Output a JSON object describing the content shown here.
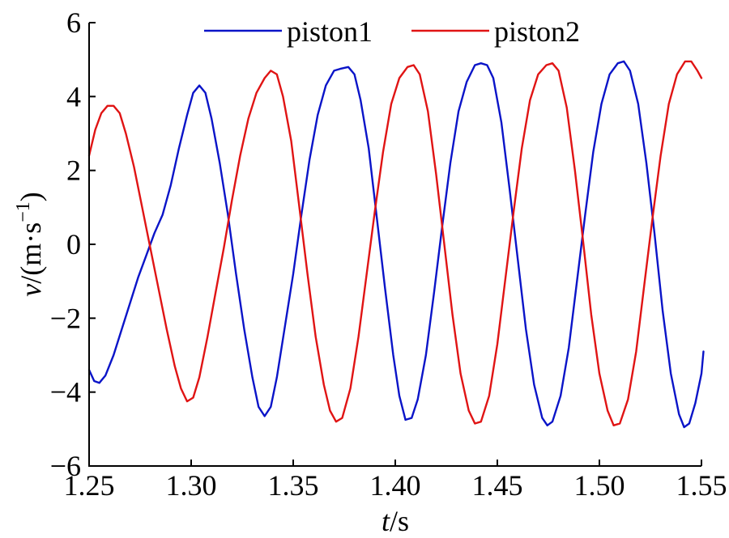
{
  "chart_data": {
    "type": "line",
    "xlabel_var": "t",
    "xlabel_unit": "/s",
    "ylabel_var": "v",
    "ylabel_unit": "/(m·s",
    "ylabel_exp": "−1",
    "ylabel_close": ")",
    "xlim": [
      1.25,
      1.55
    ],
    "ylim": [
      -6,
      6
    ],
    "xticks": [
      1.25,
      1.3,
      1.35,
      1.4,
      1.45,
      1.5,
      1.55
    ],
    "xtick_labels": [
      "1.25",
      "1.30",
      "1.35",
      "1.40",
      "1.45",
      "1.50",
      "1.55"
    ],
    "yticks": [
      -6,
      -4,
      -2,
      0,
      2,
      4,
      6
    ],
    "ytick_labels": [
      "−6",
      "−4",
      "−2",
      "0",
      "2",
      "4",
      "6"
    ],
    "legend_position": "top",
    "series": [
      {
        "name": "piston1",
        "color": "#0a14c8",
        "points": [
          [
            1.25,
            -3.4
          ],
          [
            1.2525,
            -3.7
          ],
          [
            1.255,
            -3.75
          ],
          [
            1.258,
            -3.55
          ],
          [
            1.262,
            -3.0
          ],
          [
            1.266,
            -2.3
          ],
          [
            1.27,
            -1.6
          ],
          [
            1.274,
            -0.9
          ],
          [
            1.278,
            -0.3
          ],
          [
            1.282,
            0.3
          ],
          [
            1.286,
            0.8
          ],
          [
            1.29,
            1.6
          ],
          [
            1.294,
            2.6
          ],
          [
            1.298,
            3.5
          ],
          [
            1.301,
            4.1
          ],
          [
            1.304,
            4.3
          ],
          [
            1.307,
            4.1
          ],
          [
            1.31,
            3.4
          ],
          [
            1.314,
            2.2
          ],
          [
            1.318,
            0.8
          ],
          [
            1.322,
            -0.8
          ],
          [
            1.326,
            -2.3
          ],
          [
            1.33,
            -3.6
          ],
          [
            1.333,
            -4.4
          ],
          [
            1.336,
            -4.65
          ],
          [
            1.339,
            -4.4
          ],
          [
            1.342,
            -3.6
          ],
          [
            1.346,
            -2.2
          ],
          [
            1.35,
            -0.8
          ],
          [
            1.354,
            0.8
          ],
          [
            1.358,
            2.3
          ],
          [
            1.362,
            3.5
          ],
          [
            1.366,
            4.3
          ],
          [
            1.37,
            4.7
          ],
          [
            1.373,
            4.75
          ],
          [
            1.377,
            4.8
          ],
          [
            1.38,
            4.6
          ],
          [
            1.383,
            3.9
          ],
          [
            1.387,
            2.6
          ],
          [
            1.391,
            0.7
          ],
          [
            1.395,
            -1.2
          ],
          [
            1.399,
            -3.0
          ],
          [
            1.402,
            -4.1
          ],
          [
            1.405,
            -4.75
          ],
          [
            1.408,
            -4.7
          ],
          [
            1.411,
            -4.2
          ],
          [
            1.415,
            -3.0
          ],
          [
            1.419,
            -1.3
          ],
          [
            1.423,
            0.5
          ],
          [
            1.427,
            2.2
          ],
          [
            1.431,
            3.6
          ],
          [
            1.435,
            4.4
          ],
          [
            1.439,
            4.85
          ],
          [
            1.442,
            4.9
          ],
          [
            1.445,
            4.85
          ],
          [
            1.448,
            4.5
          ],
          [
            1.452,
            3.3
          ],
          [
            1.456,
            1.5
          ],
          [
            1.46,
            -0.4
          ],
          [
            1.464,
            -2.3
          ],
          [
            1.468,
            -3.8
          ],
          [
            1.472,
            -4.7
          ],
          [
            1.4745,
            -4.9
          ],
          [
            1.477,
            -4.8
          ],
          [
            1.481,
            -4.1
          ],
          [
            1.485,
            -2.8
          ],
          [
            1.489,
            -1.0
          ],
          [
            1.493,
            0.8
          ],
          [
            1.497,
            2.5
          ],
          [
            1.501,
            3.8
          ],
          [
            1.505,
            4.6
          ],
          [
            1.509,
            4.9
          ],
          [
            1.512,
            4.95
          ],
          [
            1.515,
            4.7
          ],
          [
            1.519,
            3.8
          ],
          [
            1.523,
            2.2
          ],
          [
            1.527,
            0.3
          ],
          [
            1.531,
            -1.8
          ],
          [
            1.535,
            -3.5
          ],
          [
            1.539,
            -4.6
          ],
          [
            1.5415,
            -4.95
          ],
          [
            1.544,
            -4.85
          ],
          [
            1.547,
            -4.3
          ],
          [
            1.55,
            -3.5
          ],
          [
            1.551,
            -2.9
          ]
        ]
      },
      {
        "name": "piston2",
        "color": "#e01414",
        "points": [
          [
            1.25,
            2.4
          ],
          [
            1.253,
            3.1
          ],
          [
            1.256,
            3.55
          ],
          [
            1.259,
            3.75
          ],
          [
            1.262,
            3.75
          ],
          [
            1.265,
            3.55
          ],
          [
            1.268,
            3.0
          ],
          [
            1.272,
            2.1
          ],
          [
            1.276,
            1.0
          ],
          [
            1.28,
            -0.1
          ],
          [
            1.284,
            -1.2
          ],
          [
            1.288,
            -2.3
          ],
          [
            1.292,
            -3.3
          ],
          [
            1.295,
            -3.9
          ],
          [
            1.298,
            -4.25
          ],
          [
            1.301,
            -4.15
          ],
          [
            1.304,
            -3.6
          ],
          [
            1.308,
            -2.5
          ],
          [
            1.312,
            -1.3
          ],
          [
            1.316,
            -0.1
          ],
          [
            1.32,
            1.2
          ],
          [
            1.324,
            2.4
          ],
          [
            1.328,
            3.4
          ],
          [
            1.332,
            4.1
          ],
          [
            1.336,
            4.5
          ],
          [
            1.339,
            4.7
          ],
          [
            1.342,
            4.6
          ],
          [
            1.345,
            4.0
          ],
          [
            1.349,
            2.8
          ],
          [
            1.353,
            1.0
          ],
          [
            1.357,
            -0.8
          ],
          [
            1.361,
            -2.5
          ],
          [
            1.365,
            -3.8
          ],
          [
            1.368,
            -4.5
          ],
          [
            1.371,
            -4.8
          ],
          [
            1.374,
            -4.7
          ],
          [
            1.378,
            -3.9
          ],
          [
            1.382,
            -2.5
          ],
          [
            1.386,
            -0.8
          ],
          [
            1.39,
            0.9
          ],
          [
            1.394,
            2.5
          ],
          [
            1.398,
            3.8
          ],
          [
            1.402,
            4.5
          ],
          [
            1.406,
            4.8
          ],
          [
            1.409,
            4.85
          ],
          [
            1.412,
            4.6
          ],
          [
            1.416,
            3.6
          ],
          [
            1.42,
            1.9
          ],
          [
            1.424,
            0.0
          ],
          [
            1.428,
            -1.9
          ],
          [
            1.432,
            -3.5
          ],
          [
            1.436,
            -4.5
          ],
          [
            1.439,
            -4.85
          ],
          [
            1.442,
            -4.8
          ],
          [
            1.446,
            -4.1
          ],
          [
            1.45,
            -2.7
          ],
          [
            1.454,
            -0.9
          ],
          [
            1.458,
            0.9
          ],
          [
            1.462,
            2.6
          ],
          [
            1.466,
            3.9
          ],
          [
            1.47,
            4.6
          ],
          [
            1.474,
            4.85
          ],
          [
            1.477,
            4.9
          ],
          [
            1.48,
            4.7
          ],
          [
            1.484,
            3.7
          ],
          [
            1.488,
            2.0
          ],
          [
            1.492,
            0.1
          ],
          [
            1.496,
            -1.9
          ],
          [
            1.5,
            -3.5
          ],
          [
            1.504,
            -4.5
          ],
          [
            1.507,
            -4.9
          ],
          [
            1.51,
            -4.85
          ],
          [
            1.514,
            -4.2
          ],
          [
            1.518,
            -2.9
          ],
          [
            1.522,
            -1.1
          ],
          [
            1.526,
            0.7
          ],
          [
            1.53,
            2.4
          ],
          [
            1.534,
            3.8
          ],
          [
            1.538,
            4.6
          ],
          [
            1.542,
            4.95
          ],
          [
            1.545,
            4.95
          ],
          [
            1.548,
            4.7
          ],
          [
            1.55,
            4.5
          ]
        ]
      }
    ]
  }
}
